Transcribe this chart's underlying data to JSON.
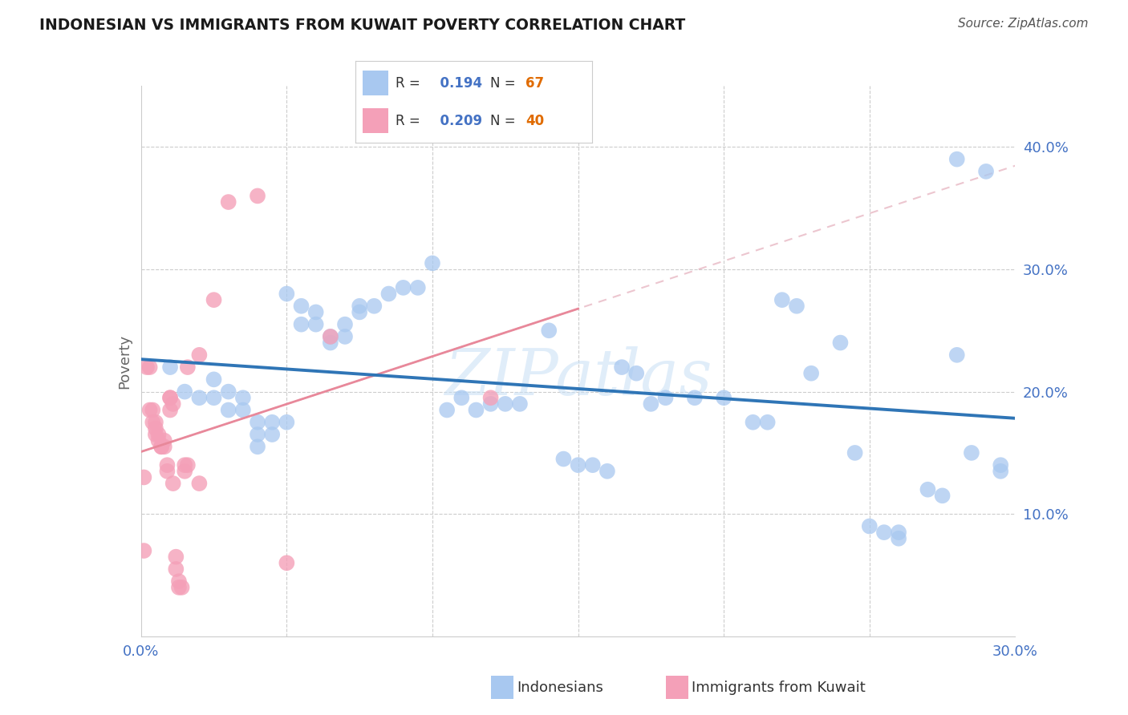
{
  "title": "INDONESIAN VS IMMIGRANTS FROM KUWAIT POVERTY CORRELATION CHART",
  "source": "Source: ZipAtlas.com",
  "ylabel": "Poverty",
  "legend_label1": "Indonesians",
  "legend_label2": "Immigrants from Kuwait",
  "r1": 0.194,
  "n1": 67,
  "r2": 0.209,
  "n2": 40,
  "xlim": [
    0.0,
    0.3
  ],
  "ylim": [
    0.0,
    0.45
  ],
  "yticks": [
    0.0,
    0.1,
    0.2,
    0.3,
    0.4
  ],
  "ytick_labels": [
    "",
    "10.0%",
    "20.0%",
    "30.0%",
    "40.0%"
  ],
  "xtick_labels": [
    "0.0%",
    "",
    "",
    "",
    "",
    "",
    "30.0%"
  ],
  "color_blue": "#A8C8F0",
  "color_blue_line": "#2F75B6",
  "color_pink": "#F4A0B8",
  "color_pink_dashed": "#E8889A",
  "color_label": "#4472C4",
  "color_n": "#E06B00",
  "watermark": "ZIPatlas",
  "blue_x": [
    0.01,
    0.015,
    0.02,
    0.025,
    0.025,
    0.03,
    0.03,
    0.035,
    0.035,
    0.04,
    0.04,
    0.04,
    0.045,
    0.045,
    0.05,
    0.05,
    0.055,
    0.055,
    0.06,
    0.06,
    0.065,
    0.065,
    0.07,
    0.07,
    0.075,
    0.075,
    0.08,
    0.085,
    0.09,
    0.095,
    0.1,
    0.105,
    0.11,
    0.115,
    0.12,
    0.125,
    0.13,
    0.14,
    0.145,
    0.15,
    0.155,
    0.16,
    0.165,
    0.17,
    0.175,
    0.18,
    0.19,
    0.2,
    0.21,
    0.215,
    0.22,
    0.225,
    0.23,
    0.24,
    0.245,
    0.25,
    0.255,
    0.26,
    0.27,
    0.275,
    0.28,
    0.285,
    0.29,
    0.295,
    0.295,
    0.28,
    0.26
  ],
  "blue_y": [
    0.22,
    0.2,
    0.195,
    0.21,
    0.195,
    0.2,
    0.185,
    0.195,
    0.185,
    0.175,
    0.165,
    0.155,
    0.175,
    0.165,
    0.28,
    0.175,
    0.27,
    0.255,
    0.265,
    0.255,
    0.245,
    0.24,
    0.255,
    0.245,
    0.27,
    0.265,
    0.27,
    0.28,
    0.285,
    0.285,
    0.305,
    0.185,
    0.195,
    0.185,
    0.19,
    0.19,
    0.19,
    0.25,
    0.145,
    0.14,
    0.14,
    0.135,
    0.22,
    0.215,
    0.19,
    0.195,
    0.195,
    0.195,
    0.175,
    0.175,
    0.275,
    0.27,
    0.215,
    0.24,
    0.15,
    0.09,
    0.085,
    0.08,
    0.12,
    0.115,
    0.39,
    0.15,
    0.38,
    0.14,
    0.135,
    0.23,
    0.085
  ],
  "pink_x": [
    0.001,
    0.001,
    0.002,
    0.003,
    0.003,
    0.004,
    0.004,
    0.005,
    0.005,
    0.005,
    0.006,
    0.006,
    0.007,
    0.007,
    0.008,
    0.008,
    0.009,
    0.009,
    0.01,
    0.01,
    0.01,
    0.011,
    0.011,
    0.012,
    0.012,
    0.013,
    0.013,
    0.014,
    0.015,
    0.015,
    0.016,
    0.016,
    0.02,
    0.02,
    0.025,
    0.03,
    0.04,
    0.05,
    0.065,
    0.12
  ],
  "pink_y": [
    0.13,
    0.07,
    0.22,
    0.22,
    0.185,
    0.185,
    0.175,
    0.175,
    0.17,
    0.165,
    0.165,
    0.16,
    0.155,
    0.155,
    0.16,
    0.155,
    0.14,
    0.135,
    0.195,
    0.195,
    0.185,
    0.19,
    0.125,
    0.065,
    0.055,
    0.045,
    0.04,
    0.04,
    0.14,
    0.135,
    0.22,
    0.14,
    0.23,
    0.125,
    0.275,
    0.355,
    0.36,
    0.06,
    0.245,
    0.195
  ]
}
